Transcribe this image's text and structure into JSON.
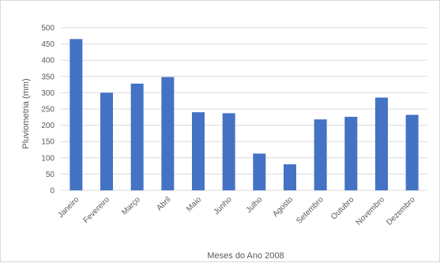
{
  "chart_data": {
    "type": "bar",
    "title": "",
    "xlabel": "Meses do Ano 2008",
    "ylabel": "Pluviometria (mm)",
    "categories": [
      "Janeiro",
      "Fevereiro",
      "Março",
      "Abril",
      "Maio",
      "Junho",
      "Julho",
      "Agosto",
      "Setembro",
      "Outubro",
      "Novembro",
      "Dezembro"
    ],
    "values": [
      465,
      300,
      328,
      348,
      240,
      237,
      113,
      80,
      218,
      226,
      285,
      232
    ],
    "ylim": [
      0,
      500
    ],
    "yticks": [
      0,
      50,
      100,
      150,
      200,
      250,
      300,
      350,
      400,
      450,
      500
    ],
    "grid": true,
    "legend": "none",
    "bar_color": "#4472c4"
  }
}
